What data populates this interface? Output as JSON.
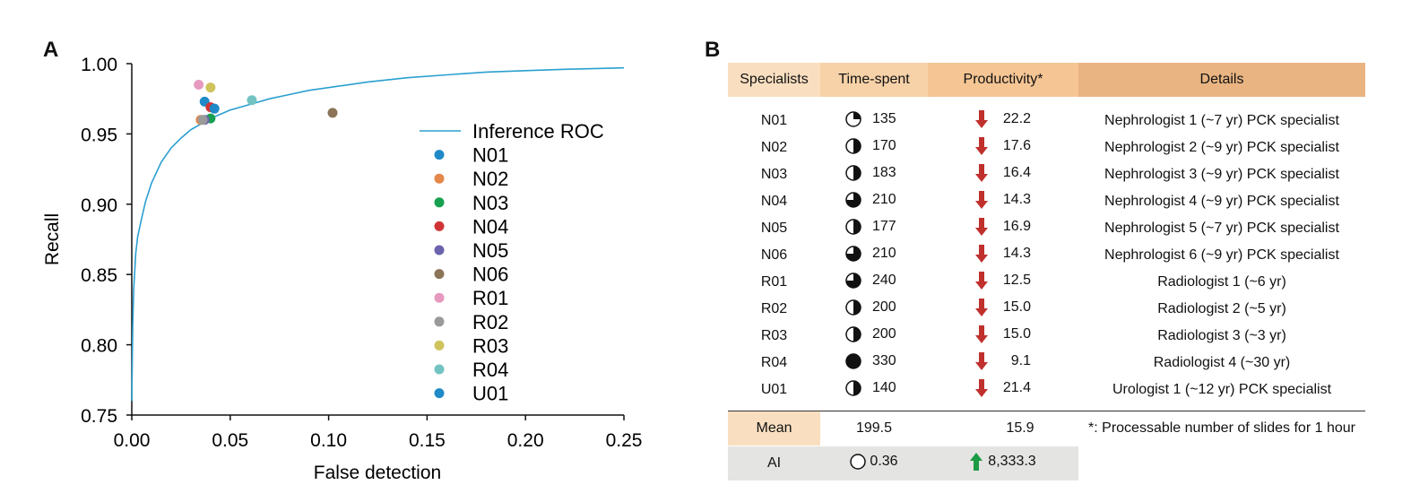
{
  "panels": {
    "a_letter": "A",
    "b_letter": "B"
  },
  "chart_data": {
    "type": "line",
    "xlabel": "False detection",
    "ylabel": "Recall",
    "xlim": [
      0.0,
      0.25
    ],
    "ylim": [
      0.75,
      1.0
    ],
    "xticks": [
      "0.00",
      "0.05",
      "0.10",
      "0.15",
      "0.20",
      "0.25"
    ],
    "yticks": [
      "0.75",
      "0.80",
      "0.85",
      "0.90",
      "0.95",
      "1.00"
    ],
    "grid": false,
    "legend_position": "right",
    "roc_curve": {
      "name": "Inference ROC",
      "color": "#2a9fd0",
      "x": [
        0.0,
        0.0005,
        0.001,
        0.002,
        0.003,
        0.005,
        0.007,
        0.01,
        0.015,
        0.02,
        0.025,
        0.03,
        0.035,
        0.04,
        0.05,
        0.06,
        0.07,
        0.08,
        0.09,
        0.1,
        0.12,
        0.14,
        0.16,
        0.18,
        0.2,
        0.22,
        0.25
      ],
      "y": [
        0.76,
        0.815,
        0.84,
        0.865,
        0.877,
        0.89,
        0.902,
        0.915,
        0.93,
        0.94,
        0.947,
        0.953,
        0.957,
        0.961,
        0.967,
        0.971,
        0.975,
        0.978,
        0.981,
        0.983,
        0.987,
        0.99,
        0.992,
        0.994,
        0.995,
        0.996,
        0.997
      ]
    },
    "points": [
      {
        "name": "N01",
        "x": 0.037,
        "y": 0.973,
        "color": "#1f8ac7"
      },
      {
        "name": "N02",
        "x": 0.035,
        "y": 0.96,
        "color": "#e3884a"
      },
      {
        "name": "N03",
        "x": 0.04,
        "y": 0.961,
        "color": "#17a050"
      },
      {
        "name": "N04",
        "x": 0.04,
        "y": 0.969,
        "color": "#d03535"
      },
      {
        "name": "N05",
        "x": 0.037,
        "y": 0.96,
        "color": "#6b63ad"
      },
      {
        "name": "N06",
        "x": 0.102,
        "y": 0.965,
        "color": "#8c7458"
      },
      {
        "name": "R01",
        "x": 0.034,
        "y": 0.985,
        "color": "#e79ac0"
      },
      {
        "name": "R02",
        "x": 0.036,
        "y": 0.96,
        "color": "#9a9a9a"
      },
      {
        "name": "R03",
        "x": 0.04,
        "y": 0.983,
        "color": "#cfc45c"
      },
      {
        "name": "R04",
        "x": 0.061,
        "y": 0.974,
        "color": "#74c3c3"
      },
      {
        "name": "U01",
        "x": 0.042,
        "y": 0.968,
        "color": "#1f8ac7"
      }
    ]
  },
  "table": {
    "headers": [
      "Specialists",
      "Time-spent",
      "Productivity*",
      "Details"
    ],
    "rows": [
      {
        "name": "N01",
        "time": "135",
        "pie": 0.25,
        "prod": "22.2",
        "details": "Nephrologist 1 (~7 yr) PCK specialist"
      },
      {
        "name": "N02",
        "time": "170",
        "pie": 0.5,
        "prod": "17.6",
        "details": "Nephrologist 2 (~9 yr) PCK specialist"
      },
      {
        "name": "N03",
        "time": "183",
        "pie": 0.5,
        "prod": "16.4",
        "details": "Nephrologist 3 (~9 yr) PCK specialist"
      },
      {
        "name": "N04",
        "time": "210",
        "pie": 0.75,
        "prod": "14.3",
        "details": "Nephrologist 4 (~9 yr) PCK specialist"
      },
      {
        "name": "N05",
        "time": "177",
        "pie": 0.5,
        "prod": "16.9",
        "details": "Nephrologist 5 (~7 yr) PCK specialist"
      },
      {
        "name": "N06",
        "time": "210",
        "pie": 0.75,
        "prod": "14.3",
        "details": "Nephrologist 6 (~9 yr) PCK specialist"
      },
      {
        "name": "R01",
        "time": "240",
        "pie": 0.75,
        "prod": "12.5",
        "details": "Radiologist 1 (~6 yr)"
      },
      {
        "name": "R02",
        "time": "200",
        "pie": 0.5,
        "prod": "15.0",
        "details": "Radiologist 2 (~5 yr)"
      },
      {
        "name": "R03",
        "time": "200",
        "pie": 0.5,
        "prod": "15.0",
        "details": "Radiologist 3 (~3 yr)"
      },
      {
        "name": "R04",
        "time": "330",
        "pie": 1.0,
        "prod": "9.1",
        "details": "Radiologist 4 (~30 yr)"
      },
      {
        "name": "U01",
        "time": "140",
        "pie": 0.5,
        "prod": "21.4",
        "details": "Urologist 1 (~12 yr) PCK specialist"
      }
    ],
    "mean": {
      "label": "Mean",
      "time": "199.5",
      "prod": "15.9",
      "note": "*: Processable number of slides for 1 hour"
    },
    "ai": {
      "label": "AI",
      "time": "0.36",
      "pie": 0.0,
      "prod": "8,333.3"
    },
    "colors": {
      "down_arrow": "#c0302d",
      "up_arrow": "#1c9a44"
    }
  }
}
